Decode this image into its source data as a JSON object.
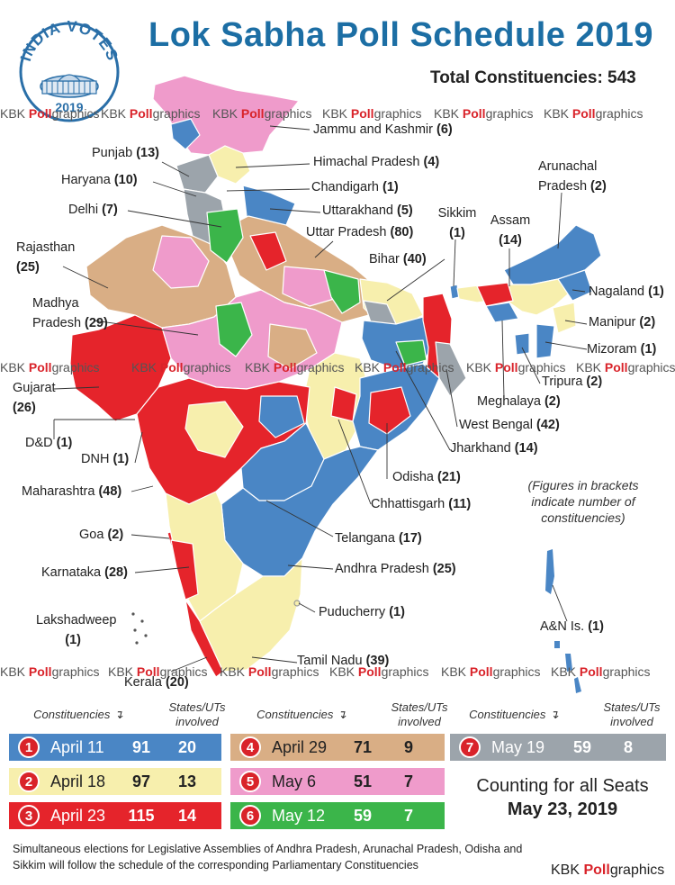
{
  "logo": {
    "arc_text": "INDIA VOTES",
    "year": "2019"
  },
  "title": "Lok Sabha Poll Schedule 2019",
  "total": "Total Constituencies: 543",
  "watermark": {
    "plain": "KBK ",
    "red": "Poll",
    "tail": "graphics"
  },
  "note": "(Figures in brackets indicate number of constituencies)",
  "colors": {
    "phase1": "#4a86c5",
    "phase2": "#f7efad",
    "phase3": "#e5242b",
    "phase4": "#d9ae85",
    "phase5": "#ef9bcb",
    "phase6": "#3bb54a",
    "phase7": "#9ca4ab",
    "accent": "#d9232a",
    "title": "#1c6ea4"
  },
  "states": [
    {
      "name": "Jammu and Kashmir",
      "seats": "(6)"
    },
    {
      "name": "Punjab",
      "seats": "(13)"
    },
    {
      "name": "Himachal Pradesh",
      "seats": "(4)"
    },
    {
      "name": "Haryana",
      "seats": "(10)"
    },
    {
      "name": "Chandigarh",
      "seats": "(1)"
    },
    {
      "name": "Delhi",
      "seats": "(7)"
    },
    {
      "name": "Uttarakhand",
      "seats": "(5)"
    },
    {
      "name": "Sikkim",
      "seats": "(1)"
    },
    {
      "name": "Arunachal Pradesh",
      "seats": "(2)"
    },
    {
      "name": "Assam",
      "seats": "(14)"
    },
    {
      "name": "Uttar Pradesh",
      "seats": "(80)"
    },
    {
      "name": "Rajasthan",
      "seats": "(25)"
    },
    {
      "name": "Bihar",
      "seats": "(40)"
    },
    {
      "name": "Nagaland",
      "seats": "(1)"
    },
    {
      "name": "Madhya Pradesh",
      "seats": "(29)"
    },
    {
      "name": "Manipur",
      "seats": "(2)"
    },
    {
      "name": "Mizoram",
      "seats": "(1)"
    },
    {
      "name": "Gujarat",
      "seats": "(26)"
    },
    {
      "name": "Tripura",
      "seats": "(2)"
    },
    {
      "name": "Meghalaya",
      "seats": "(2)"
    },
    {
      "name": "West Bengal",
      "seats": "(42)"
    },
    {
      "name": "D&D",
      "seats": "(1)"
    },
    {
      "name": "Jharkhand",
      "seats": "(14)"
    },
    {
      "name": "DNH",
      "seats": "(1)"
    },
    {
      "name": "Odisha",
      "seats": "(21)"
    },
    {
      "name": "Maharashtra",
      "seats": "(48)"
    },
    {
      "name": "Chhattisgarh",
      "seats": "(11)"
    },
    {
      "name": "Goa",
      "seats": "(2)"
    },
    {
      "name": "Telangana",
      "seats": "(17)"
    },
    {
      "name": "Karnataka",
      "seats": "(28)"
    },
    {
      "name": "Andhra Pradesh",
      "seats": "(25)"
    },
    {
      "name": "Lakshadweep",
      "seats": "(1)"
    },
    {
      "name": "Puducherry",
      "seats": "(1)"
    },
    {
      "name": "A&N Is.",
      "seats": "(1)"
    },
    {
      "name": "Tamil Nadu",
      "seats": "(39)"
    },
    {
      "name": "Kerala",
      "seats": "(20)"
    }
  ],
  "legend": {
    "col_constituencies": "Constituencies",
    "col_states": "States/UTs involved",
    "phases": [
      {
        "num": "1",
        "date": "April 11",
        "constituencies": "91",
        "states": "20"
      },
      {
        "num": "2",
        "date": "April 18",
        "constituencies": "97",
        "states": "13"
      },
      {
        "num": "3",
        "date": "April 23",
        "constituencies": "115",
        "states": "14"
      },
      {
        "num": "4",
        "date": "April 29",
        "constituencies": "71",
        "states": "9"
      },
      {
        "num": "5",
        "date": "May 6",
        "constituencies": "51",
        "states": "7"
      },
      {
        "num": "6",
        "date": "May 12",
        "constituencies": "59",
        "states": "7"
      },
      {
        "num": "7",
        "date": "May 19",
        "constituencies": "59",
        "states": "8"
      }
    ]
  },
  "counting": {
    "line1": "Counting for all Seats",
    "line2": "May 23, 2019"
  },
  "footer": "Simultaneous elections for Legislative Assemblies of Andhra Pradesh, Arunachal Pradesh, Odisha and Sikkim will follow the schedule of the corresponding Parliamentary Constituencies",
  "brand": {
    "plain": "KBK ",
    "red": "Poll",
    "tail": "graphics"
  }
}
